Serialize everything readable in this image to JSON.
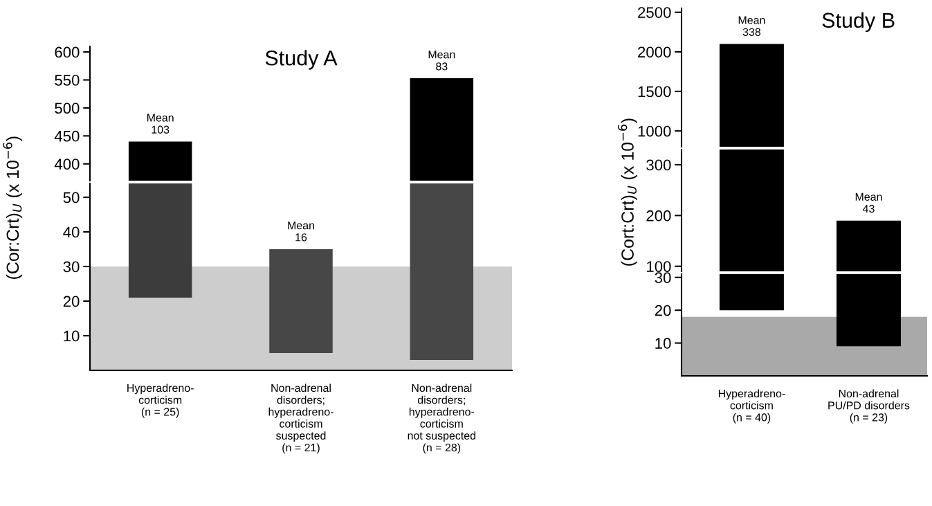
{
  "chart_data": [
    {
      "type": "bar",
      "title": "Study A",
      "categories": [
        "Hyperadreno-\ncorticism\n(n = 25)",
        "Non-adrenal\ndisorders;\nhyperadreno-\ncorticism\nsuspected\n(n = 21)",
        "Non-adrenal\ndisorders;\nhyperadreno-\ncorticism\nnot suspected\n(n = 28)"
      ],
      "base": [
        370,
        null,
        370
      ],
      "values": [
        70,
        null,
        183
      ],
      "colors": [
        "#000000",
        "#000000",
        "#000000"
      ],
      "ylim": [
        370,
        610
      ],
      "yticks": [
        400,
        450,
        500,
        550,
        600
      ],
      "tick_labels": "y",
      "annotations": [
        {
          "text": "Mean\n103",
          "x": "Hyperadreno-\ncorticism\n(n = 25)",
          "y": 440
        },
        {
          "text": "Mean\n83",
          "x": "Non-adrenal\ndisorders;\nhyperadreno-\ncorticism\nnot suspected\n(n = 28)",
          "y": 553
        }
      ]
    },
    {
      "type": "bar",
      "ylabel": "(Cor:Crt)$_{U}$ (x 10$^{−6}$)",
      "categories": [
        "Hyperadreno-\ncorticism\n(n = 25)",
        "Non-adrenal\ndisorders;\nhyperadreno-\ncorticism\nsuspected\n(n = 21)",
        "Non-adrenal\ndisorders;\nhyperadreno-\ncorticism\nnot suspected\n(n = 28)"
      ],
      "base": [
        21,
        5,
        3
      ],
      "values": [
        33,
        30,
        51
      ],
      "colors": [
        "#3c3c3c",
        "#474747",
        "#474747"
      ],
      "ylim": [
        0,
        54
      ],
      "yticks": [
        10,
        20,
        30,
        40,
        50
      ],
      "bands": [
        {
          "axis": "y",
          "from": 0,
          "to": 30,
          "color": "#cdcdcd"
        }
      ],
      "annotations": [
        {
          "text": "Mean\n16",
          "x": "Non-adrenal\ndisorders;\nhyperadreno-\ncorticism\nsuspected\n(n = 21)",
          "y": 35
        }
      ]
    },
    {
      "type": "bar",
      "title": "Study B",
      "categories": [
        "Hyperadreno-\ncorticism\n(n = 40)",
        "Non-adrenal\nPU/PD disorders\n(n = 23)"
      ],
      "base": [
        800,
        null
      ],
      "values": [
        1300,
        null
      ],
      "colors": [
        "#000000",
        "#000000"
      ],
      "ylim": [
        800,
        2550
      ],
      "yticks": [
        1000,
        1500,
        2000,
        2500
      ],
      "tick_labels": "y",
      "annotations": [
        {
          "text": "Mean\n338",
          "x": "Hyperadreno-\ncorticism\n(n = 40)",
          "y": 2100
        }
      ]
    },
    {
      "type": "bar",
      "ylabel": "(Cort:Crt)$_{U}$ (x 10$^{−6}$)",
      "categories": [
        "Hyperadreno-\ncorticism\n(n = 40)",
        "Non-adrenal\nPU/PD disorders\n(n = 23)"
      ],
      "base": [
        90,
        90
      ],
      "values": [
        240,
        100
      ],
      "colors": [
        "#000000",
        "#000000"
      ],
      "ylim": [
        90,
        330
      ],
      "yticks": [
        100,
        200,
        300
      ],
      "tick_labels": "y",
      "annotations": [
        {
          "text": "Mean\n43",
          "x": "Non-adrenal\nPU/PD disorders\n(n = 23)",
          "y": 190
        }
      ]
    },
    {
      "type": "bar",
      "categories": [
        "Hyperadreno-\ncorticism\n(n = 40)",
        "Non-adrenal\nPU/PD disorders\n(n = 23)"
      ],
      "base": [
        20,
        9
      ],
      "values": [
        11,
        22
      ],
      "colors": [
        "#000000",
        "#000000"
      ],
      "ylim": [
        0,
        31
      ],
      "yticks": [
        10,
        20,
        30
      ],
      "bands": [
        {
          "axis": "y",
          "from": 0,
          "to": 18,
          "color": "#a9a9a9"
        }
      ]
    }
  ]
}
